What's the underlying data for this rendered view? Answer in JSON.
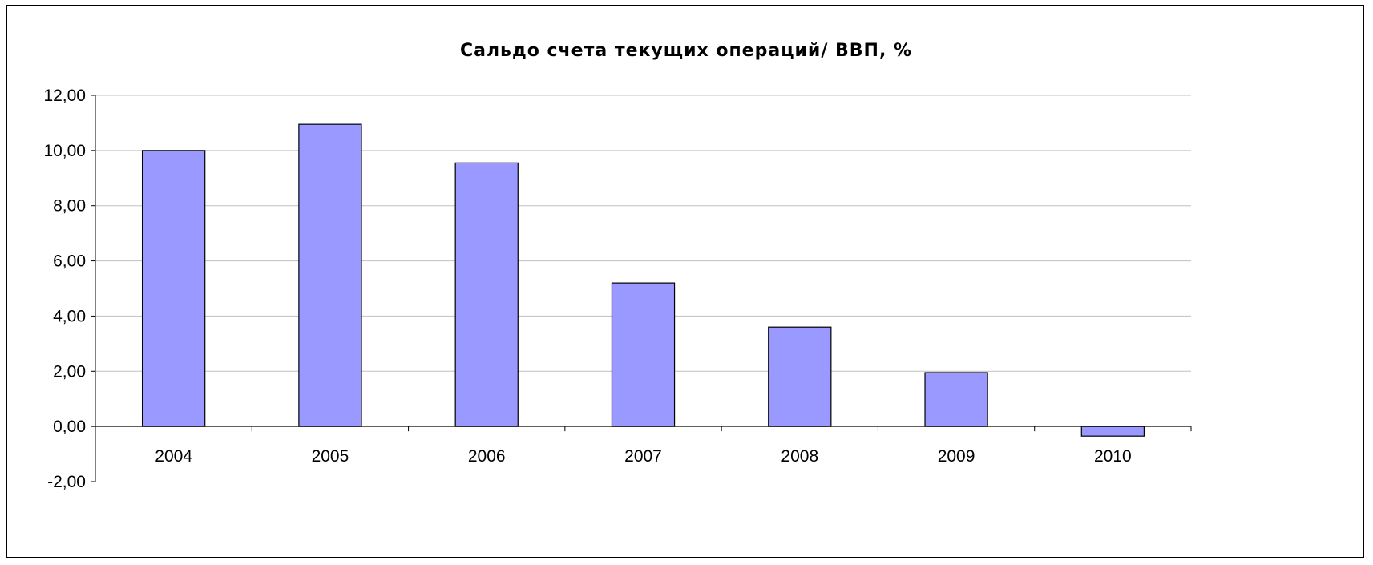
{
  "chart_data": {
    "type": "bar",
    "title": "Сальдо счета текущих операций/ ВВП, %",
    "xlabel": "",
    "ylabel": "",
    "categories": [
      "2004",
      "2005",
      "2006",
      "2007",
      "2008",
      "2009",
      "2010"
    ],
    "values": [
      10.0,
      10.95,
      9.55,
      5.2,
      3.6,
      1.95,
      -0.35
    ],
    "ylim": [
      -2,
      12
    ],
    "yticks": [
      12,
      10,
      8,
      6,
      4,
      2,
      0,
      -2
    ],
    "ytick_labels": [
      "12,00",
      "10,00",
      "8,00",
      "6,00",
      "4,00",
      "2,00",
      "0,00",
      "-2,00"
    ],
    "grid": true,
    "legend": "none",
    "colors": {
      "bar_fill": "#9999ff",
      "bar_stroke": "#000000",
      "gridline": "#c0c0c0",
      "axis": "#000000"
    }
  }
}
